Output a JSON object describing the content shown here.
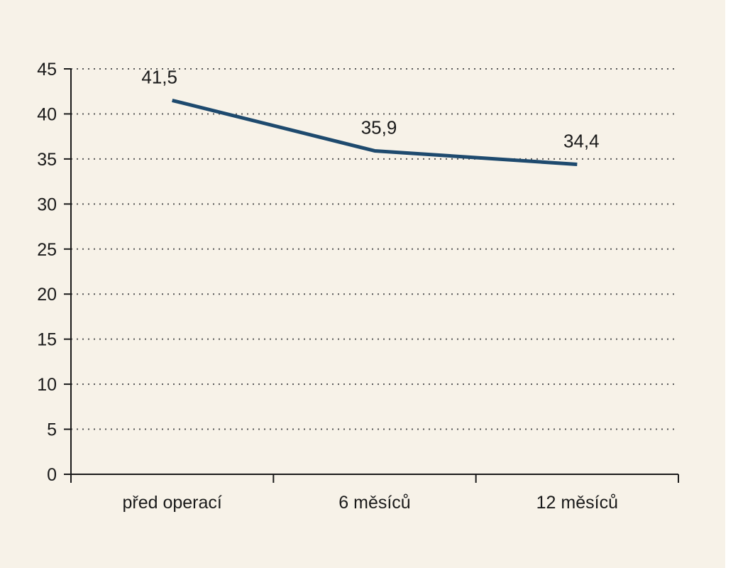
{
  "chart_data": {
    "type": "line",
    "title": "",
    "xlabel": "",
    "ylabel": "",
    "categories": [
      "před operací",
      "6 měsíců",
      "12 měsíců"
    ],
    "series": [
      {
        "values": [
          41.5,
          35.9,
          34.4
        ],
        "data_labels": [
          "41,5",
          "35,9",
          "34,4"
        ]
      }
    ],
    "ylim": [
      0,
      45
    ],
    "y_ticks": [
      "0",
      "5",
      "10",
      "15",
      "20",
      "25",
      "30",
      "35",
      "40",
      "45"
    ],
    "grid": "horizontal dotted",
    "legend": "none",
    "colors": {
      "background": "#f7f2e8",
      "line": "#1e4a6e",
      "axis": "#1a1a1a",
      "grid": "#555555"
    }
  }
}
